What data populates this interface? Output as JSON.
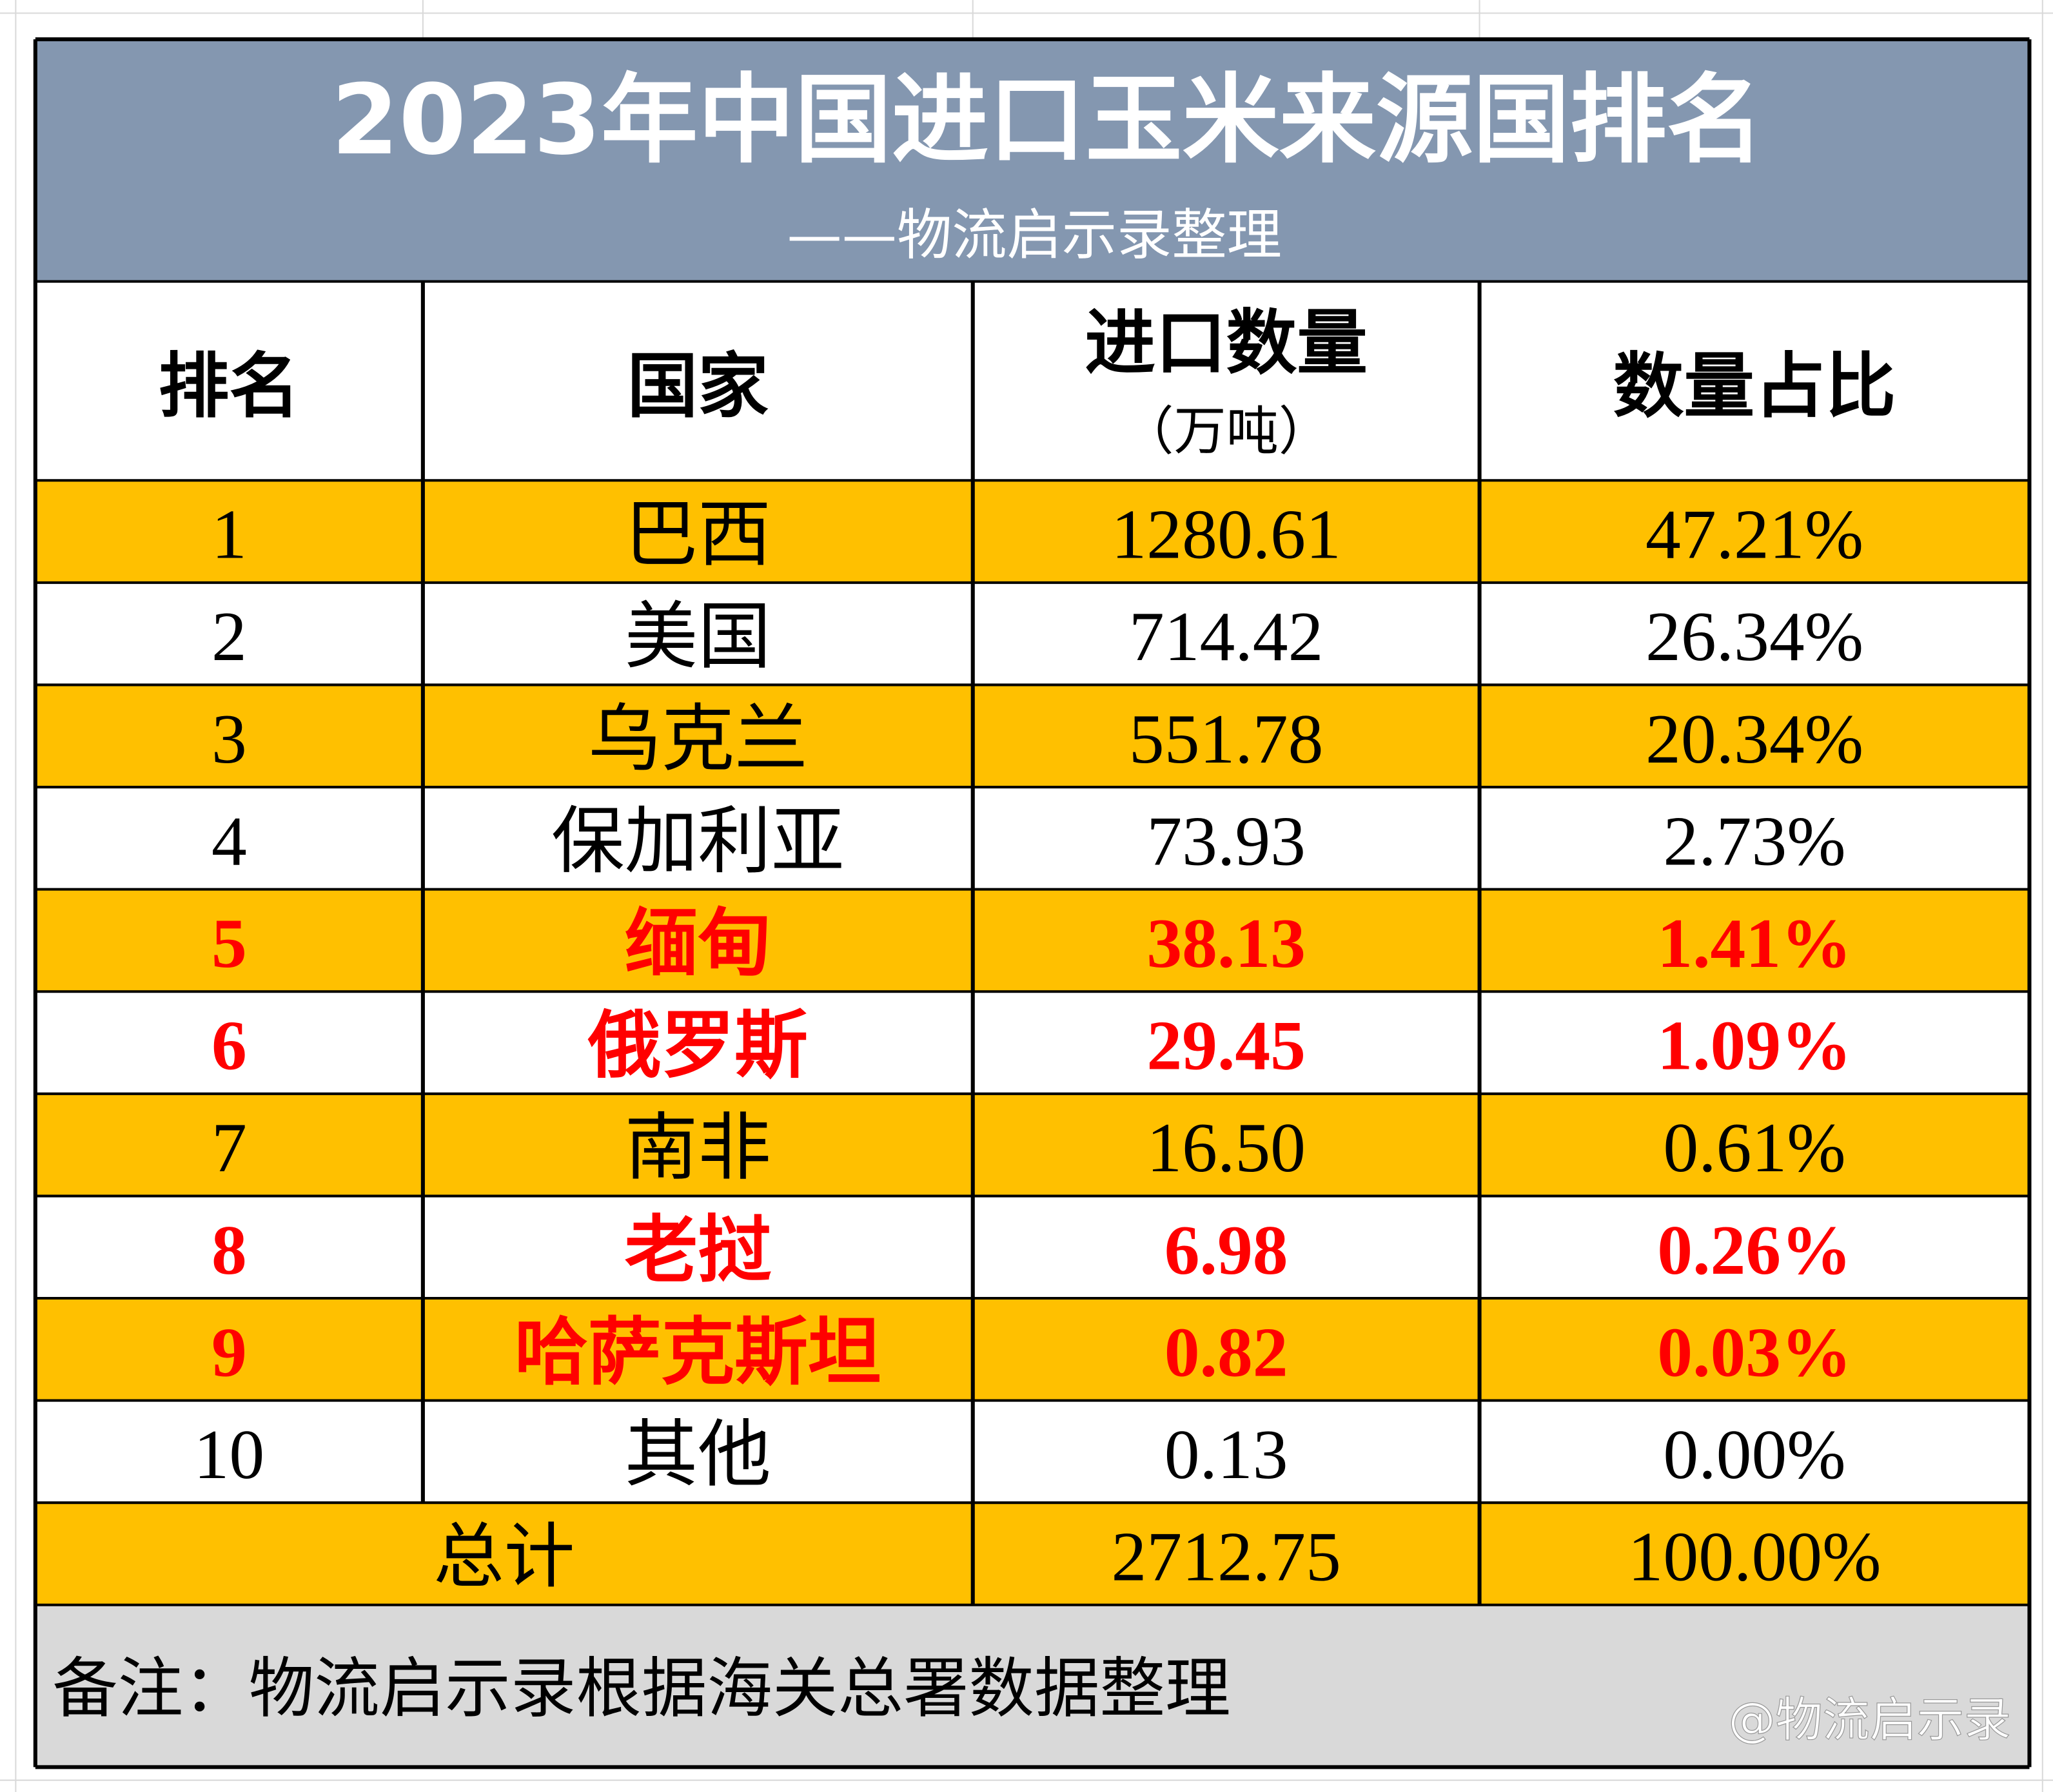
{
  "title": "2023年中国进口玉米来源国排名",
  "subtitle": "——物流启示录整理",
  "table": {
    "headers": [
      "排名",
      "国家",
      "进口数量",
      "数量占比"
    ],
    "header_unit": "（万吨）",
    "rows": [
      {
        "cells": [
          "1",
          "巴西",
          "1280.61",
          "47.21%"
        ]
      },
      {
        "cells": [
          "2",
          "美国",
          "714.42",
          "26.34%"
        ]
      },
      {
        "cells": [
          "3",
          "乌克兰",
          "551.78",
          "20.34%"
        ]
      },
      {
        "cells": [
          "4",
          "保加利亚",
          "73.93",
          "2.73%"
        ]
      },
      {
        "cells": [
          "5",
          "缅甸",
          "38.13",
          "1.41%"
        ],
        "color": "#ff0000"
      },
      {
        "cells": [
          "6",
          "俄罗斯",
          "29.45",
          "1.09%"
        ],
        "color": "#ff0000"
      },
      {
        "cells": [
          "7",
          "南非",
          "16.50",
          "0.61%"
        ]
      },
      {
        "cells": [
          "8",
          "老挝",
          "6.98",
          "0.26%"
        ],
        "color": "#ff0000"
      },
      {
        "cells": [
          "9",
          "哈萨克斯坦",
          "0.82",
          "0.03%"
        ],
        "color": "#ff0000"
      },
      {
        "cells": [
          "10",
          "其他",
          "0.13",
          "0.00%"
        ]
      }
    ],
    "total": [
      "总计",
      "2712.75",
      "100.00%"
    ]
  },
  "note": "备注：物流启示录根据海关总署数据整理",
  "watermark": "@物流启示录"
}
